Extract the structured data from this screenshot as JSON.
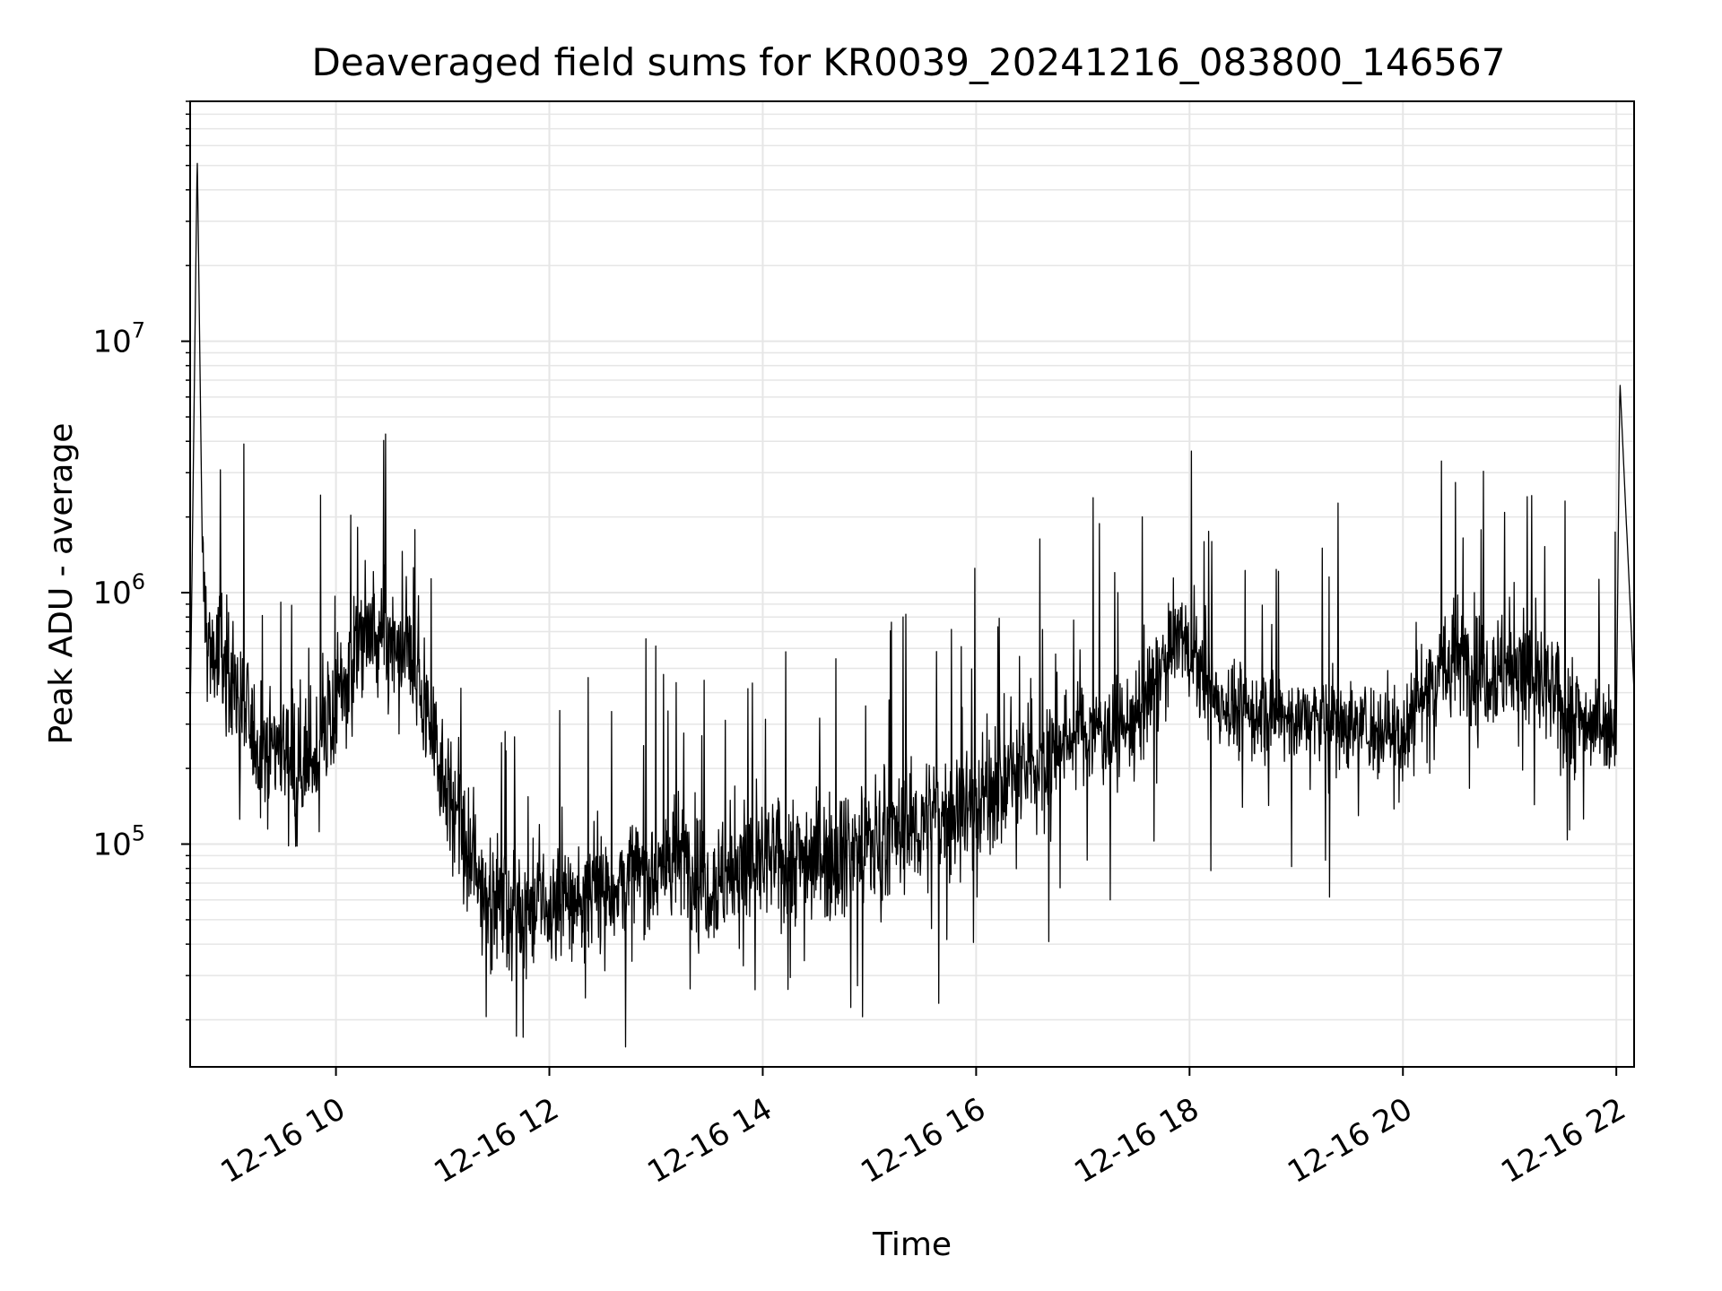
{
  "chart_data": {
    "type": "line",
    "title": "Deaveraged field sums for KR0039_20241216_083800_146567",
    "xlabel": "Time",
    "ylabel": "Peak ADU - average",
    "x_ticks": [
      "12-16 10",
      "12-16 12",
      "12-16 14",
      "12-16 16",
      "12-16 18",
      "12-16 20",
      "12-16 22"
    ],
    "y_ticks": [
      {
        "value": 100000,
        "base": "10",
        "exp": "5"
      },
      {
        "value": 1000000,
        "base": "10",
        "exp": "6"
      },
      {
        "value": 10000000,
        "base": "10",
        "exp": "7"
      }
    ],
    "xlim": [
      "2024-12-16 08:38",
      "2024-12-16 22:10"
    ],
    "ylim": [
      13000,
      90000000
    ],
    "yscale": "log",
    "grid": true,
    "line_color": "#000000",
    "series": [
      {
        "name": "",
        "x": [
          "2024-12-16 08:38",
          "2024-12-16 08:42",
          "2024-12-16 08:45",
          "2024-12-16 08:48",
          "2024-12-16 09:00",
          "2024-12-16 09:15",
          "2024-12-16 09:30",
          "2024-12-16 09:45",
          "2024-12-16 10:00",
          "2024-12-16 10:15",
          "2024-12-16 10:30",
          "2024-12-16 10:45",
          "2024-12-16 11:00",
          "2024-12-16 11:15",
          "2024-12-16 11:30",
          "2024-12-16 11:45",
          "2024-12-16 12:00",
          "2024-12-16 12:30",
          "2024-12-16 13:00",
          "2024-12-16 13:15",
          "2024-12-16 13:30",
          "2024-12-16 14:00",
          "2024-12-16 14:30",
          "2024-12-16 15:00",
          "2024-12-16 15:30",
          "2024-12-16 16:00",
          "2024-12-16 16:30",
          "2024-12-16 16:50",
          "2024-12-16 17:00",
          "2024-12-16 17:30",
          "2024-12-16 17:55",
          "2024-12-16 18:10",
          "2024-12-16 18:30",
          "2024-12-16 19:00",
          "2024-12-16 19:30",
          "2024-12-16 20:00",
          "2024-12-16 20:15",
          "2024-12-16 20:30",
          "2024-12-16 20:45",
          "2024-12-16 21:00",
          "2024-12-16 21:15",
          "2024-12-16 21:30",
          "2024-12-16 21:45",
          "2024-12-16 22:00",
          "2024-12-16 22:02",
          "2024-12-16 22:10"
        ],
        "y": [
          300000,
          55000000,
          1200000,
          600000,
          500000,
          250000,
          250000,
          200000,
          350000,
          700000,
          600000,
          500000,
          200000,
          80000,
          60000,
          55000,
          55000,
          65000,
          80000,
          90000,
          70000,
          85000,
          90000,
          100000,
          120000,
          150000,
          200000,
          260000,
          280000,
          300000,
          700000,
          400000,
          330000,
          320000,
          300000,
          280000,
          450000,
          550000,
          500000,
          500000,
          450000,
          350000,
          300000,
          300000,
          7000000,
          400000
        ]
      }
    ]
  }
}
